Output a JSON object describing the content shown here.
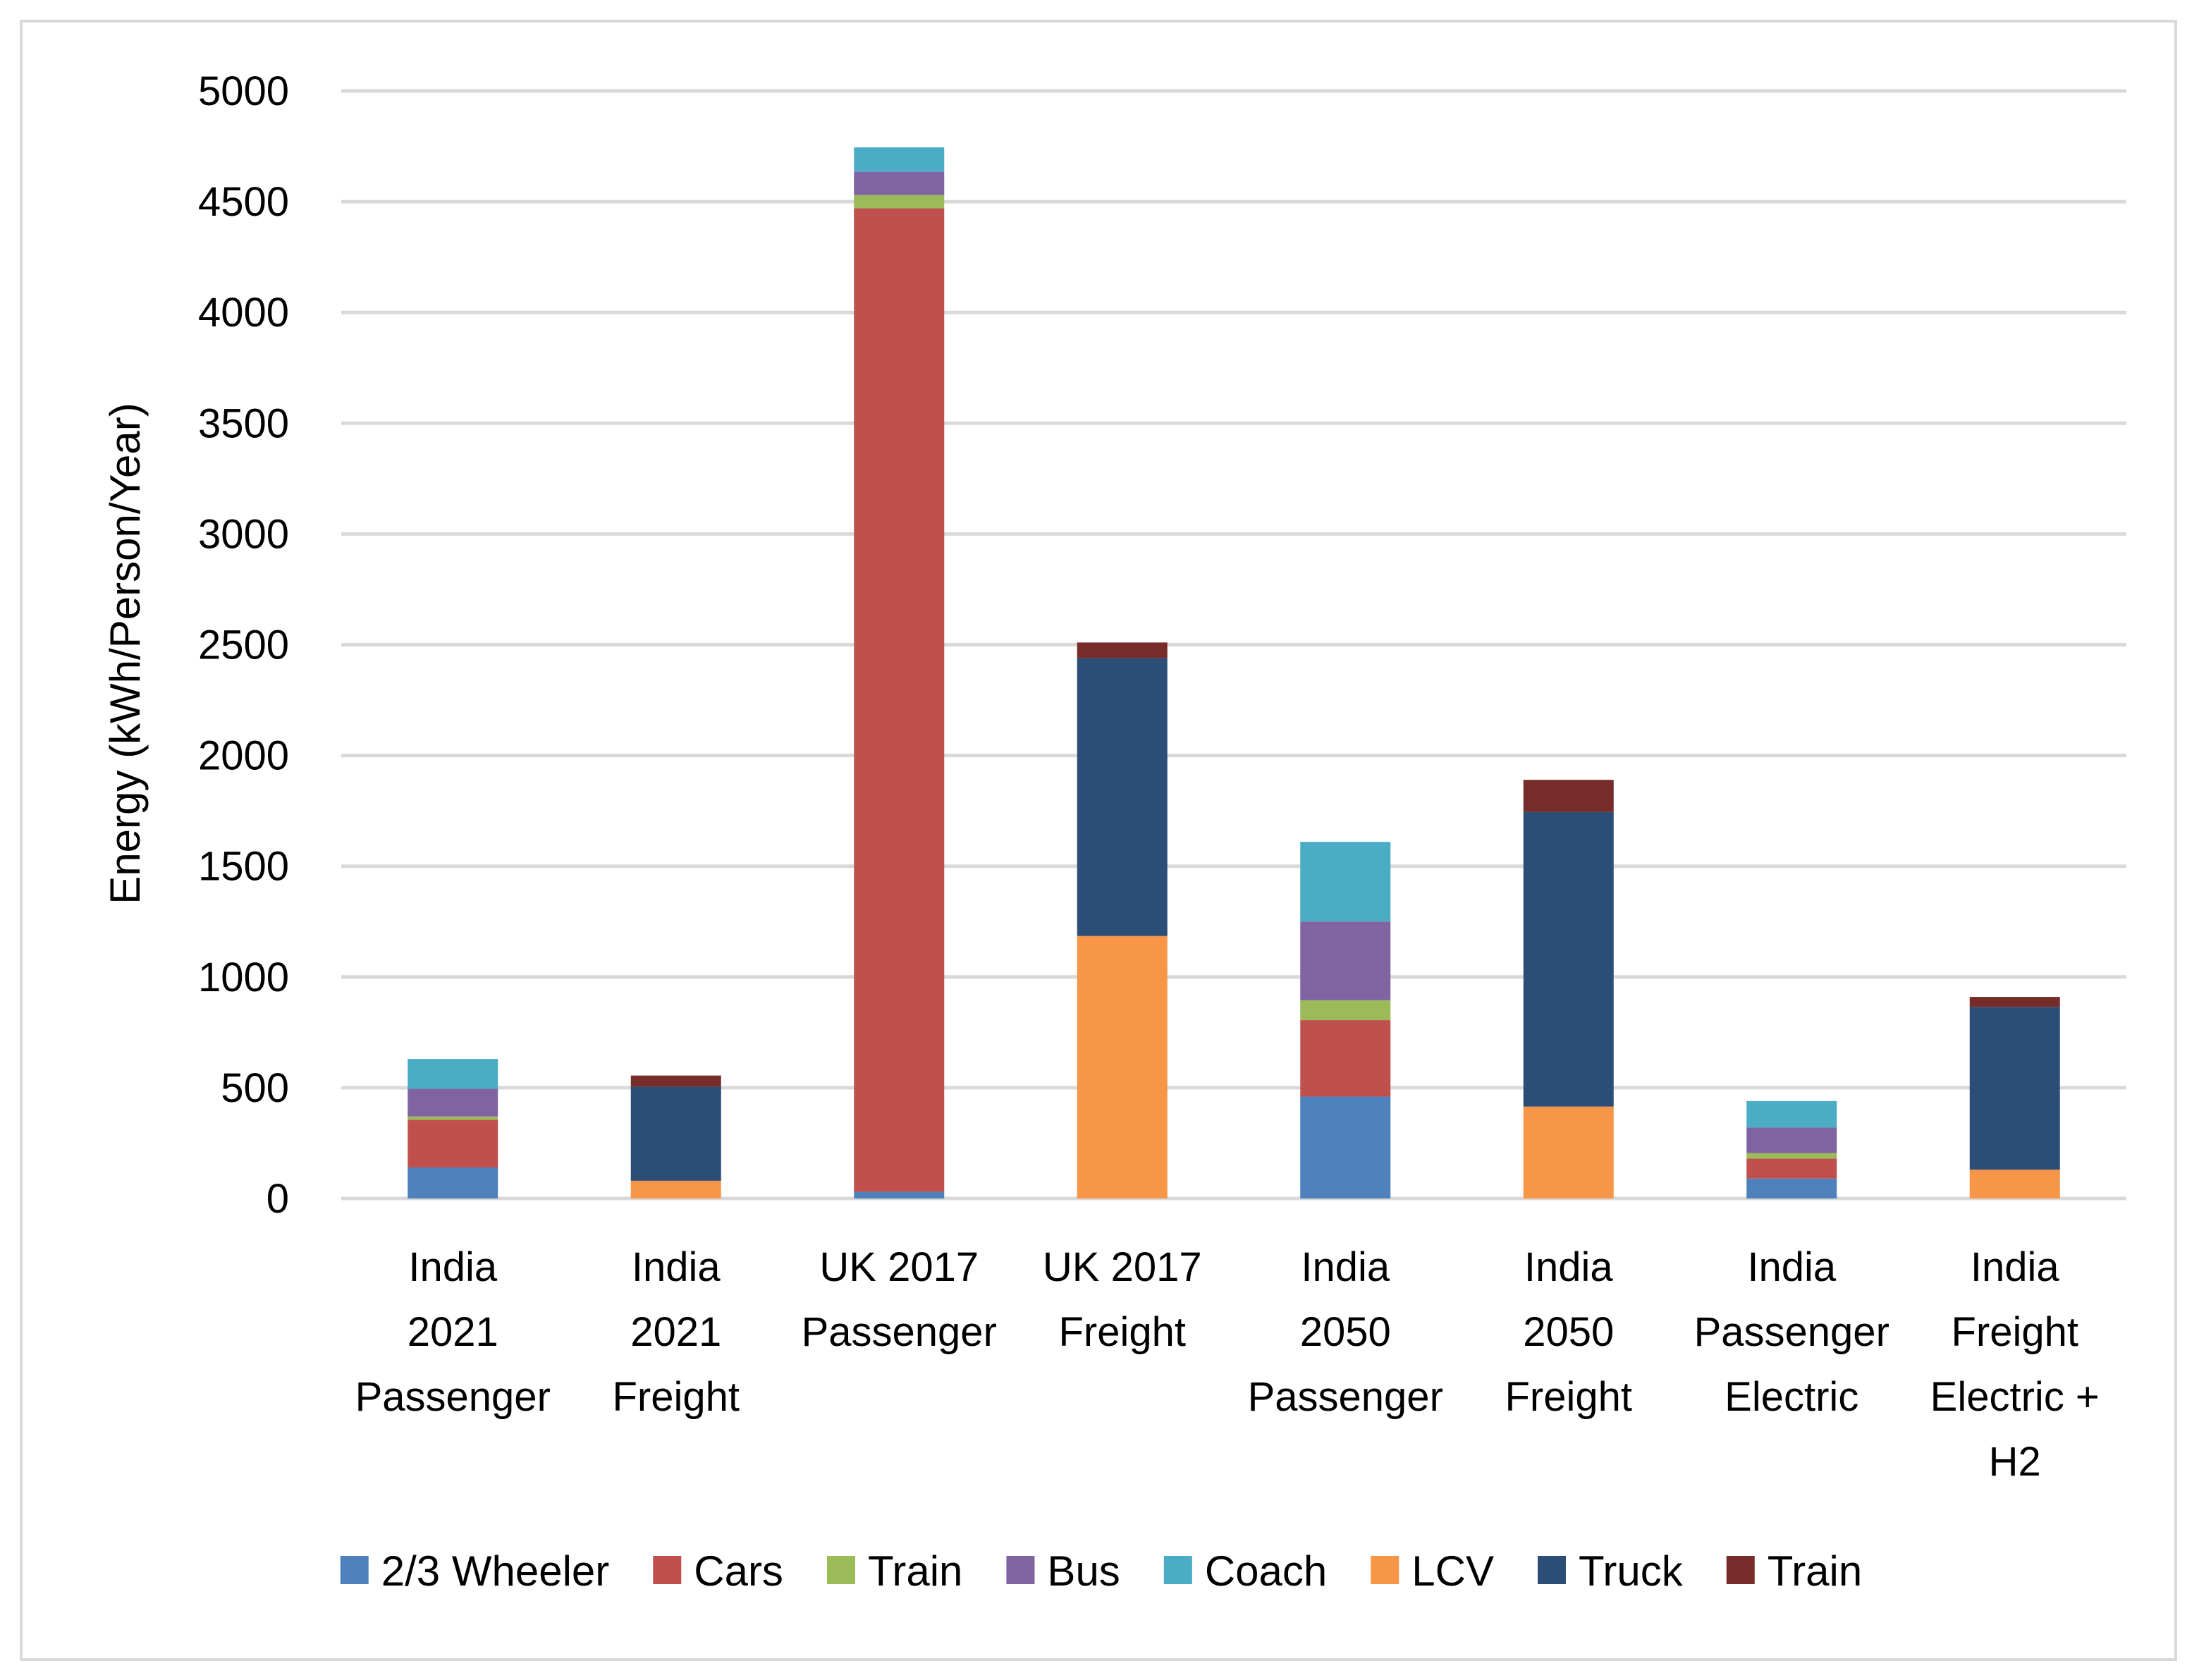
{
  "chart_data": {
    "type": "bar",
    "stacked": true,
    "title": "",
    "xlabel": "",
    "ylabel": "Energy (kWh/Person/Year)",
    "ylim": [
      0,
      5000
    ],
    "yticks": [
      0,
      500,
      1000,
      1500,
      2000,
      2500,
      3000,
      3500,
      4000,
      4500,
      5000
    ],
    "grid": true,
    "legend_position": "bottom",
    "categories": [
      [
        "India",
        "2021",
        "Passenger"
      ],
      [
        "India",
        "2021",
        "Freight"
      ],
      [
        "UK 2017",
        "Passenger"
      ],
      [
        "UK 2017",
        "Freight"
      ],
      [
        "India",
        "2050",
        "Passenger"
      ],
      [
        "India",
        "2050",
        "Freight"
      ],
      [
        "India",
        "Passenger",
        "Electric"
      ],
      [
        "India",
        "Freight",
        "Electric +",
        "H2"
      ]
    ],
    "series": [
      {
        "name": "2/3 Wheeler",
        "color": "#4f81bd",
        "values": [
          140,
          0,
          30,
          0,
          460,
          0,
          90,
          0
        ]
      },
      {
        "name": "Cars",
        "color": "#c0504d",
        "values": [
          215,
          0,
          4440,
          0,
          345,
          0,
          90,
          0
        ]
      },
      {
        "name": "Train",
        "color": "#9bbb59",
        "values": [
          15,
          0,
          60,
          0,
          90,
          0,
          25,
          0
        ]
      },
      {
        "name": "Bus",
        "color": "#8064a2",
        "values": [
          125,
          0,
          105,
          0,
          355,
          0,
          115,
          0
        ]
      },
      {
        "name": "Coach",
        "color": "#4bacc6",
        "values": [
          135,
          0,
          110,
          0,
          360,
          0,
          120,
          0
        ]
      },
      {
        "name": "LCV",
        "color": "#f79646",
        "values": [
          0,
          80,
          0,
          1185,
          0,
          415,
          0,
          130
        ]
      },
      {
        "name": "Truck",
        "color": "#2c4d75",
        "values": [
          0,
          425,
          0,
          1255,
          0,
          1330,
          0,
          735
        ]
      },
      {
        "name": "Train",
        "color": "#772c2a",
        "values": [
          0,
          50,
          0,
          70,
          0,
          145,
          0,
          45
        ]
      }
    ]
  }
}
